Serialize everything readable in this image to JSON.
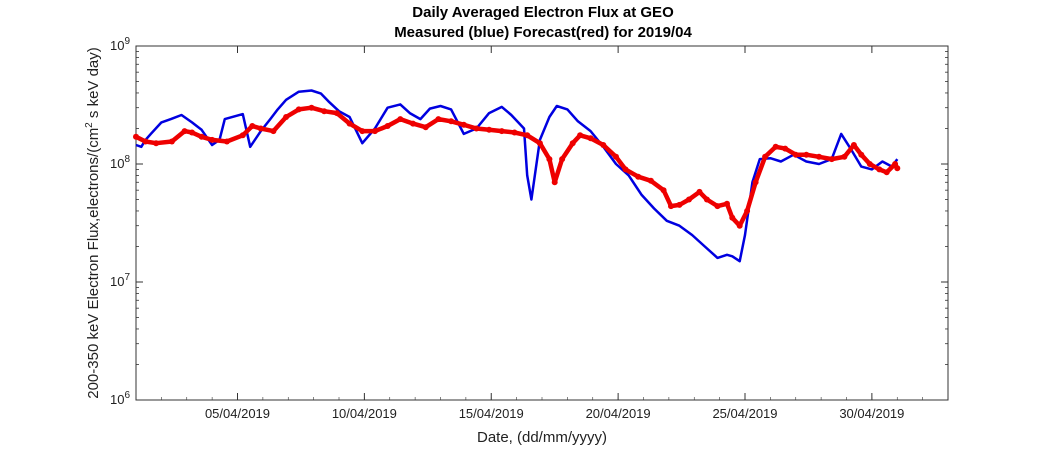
{
  "chart_data": {
    "type": "line",
    "title": "Daily Averaged Electron Flux at GEO",
    "subtitle": "Measured (blue) Forecast(red) for 2019/04",
    "xlabel": "Date, (dd/mm/yyyy)",
    "ylabel": "200-350 keV Electron Flux,electrons/(cm² s keV day)",
    "ylabel_prefix": "200-350 keV Electron Flux,electrons/(cm",
    "ylabel_exp": "2",
    "ylabel_suffix": " s keV day)",
    "y_scale": "log",
    "ylim": [
      1000000,
      1000000000
    ],
    "y_ticks": [
      {
        "value": 1000000,
        "base": "10",
        "exp": "6"
      },
      {
        "value": 10000000,
        "base": "10",
        "exp": "7"
      },
      {
        "value": 100000000,
        "base": "10",
        "exp": "8"
      },
      {
        "value": 1000000000,
        "base": "10",
        "exp": "9"
      }
    ],
    "xlim": [
      "2019-04-01",
      "2019-05-03"
    ],
    "x_ticks": [
      {
        "date": "2019-04-05",
        "label": "05/04/2019"
      },
      {
        "date": "2019-04-10",
        "label": "10/04/2019"
      },
      {
        "date": "2019-04-15",
        "label": "15/04/2019"
      },
      {
        "date": "2019-04-20",
        "label": "20/04/2019"
      },
      {
        "date": "2019-04-25",
        "label": "25/04/2019"
      },
      {
        "date": "2019-04-30",
        "label": "30/04/2019"
      }
    ],
    "grid": false,
    "series": [
      {
        "name": "Measured",
        "color": "#0000e0",
        "style": "line",
        "x": [
          "2019-04-01T00:00",
          "2019-04-01T05:00",
          "2019-04-01T09:00",
          "2019-04-01T14:00",
          "2019-04-02T00:00",
          "2019-04-02T09:00",
          "2019-04-02T19:00",
          "2019-04-03T05:00",
          "2019-04-03T14:00",
          "2019-04-04T00:00",
          "2019-04-04T07:00",
          "2019-04-04T12:00",
          "2019-04-05T05:00",
          "2019-04-05T12:00",
          "2019-04-05T22:00",
          "2019-04-06T07:00",
          "2019-04-06T14:00",
          "2019-04-06T22:00",
          "2019-04-07T10:00",
          "2019-04-07T22:00",
          "2019-04-08T07:00",
          "2019-04-08T14:00",
          "2019-04-09T00:00",
          "2019-04-09T10:00",
          "2019-04-09T22:00",
          "2019-04-10T10:00",
          "2019-04-10T22:00",
          "2019-04-11T10:00",
          "2019-04-11T19:00",
          "2019-04-12T05:00",
          "2019-04-12T14:00",
          "2019-04-13T00:00",
          "2019-04-13T10:00",
          "2019-04-13T22:00",
          "2019-04-14T10:00",
          "2019-04-14T22:00",
          "2019-04-15T10:00",
          "2019-04-15T19:00",
          "2019-04-16T07:00",
          "2019-04-16T10:00",
          "2019-04-16T14:00",
          "2019-04-16T22:00",
          "2019-04-17T07:00",
          "2019-04-17T14:00",
          "2019-04-18T00:00",
          "2019-04-18T10:00",
          "2019-04-18T22:00",
          "2019-04-19T10:00",
          "2019-04-19T22:00",
          "2019-04-20T10:00",
          "2019-04-20T22:00",
          "2019-04-21T10:00",
          "2019-04-21T22:00",
          "2019-04-22T10:00",
          "2019-04-22T22:00",
          "2019-04-23T10:00",
          "2019-04-23T22:00",
          "2019-04-24T07:00",
          "2019-04-24T12:00",
          "2019-04-24T19:00",
          "2019-04-25T00:00",
          "2019-04-25T07:00",
          "2019-04-25T14:00",
          "2019-04-26T00:00",
          "2019-04-26T10:00",
          "2019-04-26T22:00",
          "2019-04-27T10:00",
          "2019-04-27T22:00",
          "2019-04-28T10:00",
          "2019-04-28T19:00",
          "2019-04-29T05:00",
          "2019-04-29T14:00",
          "2019-04-30T00:00",
          "2019-04-30T10:00",
          "2019-04-30T19:00",
          "2019-05-01T00:00"
        ],
        "y": [
          145000000,
          140000000,
          160000000,
          180000000,
          225000000,
          240000000,
          260000000,
          225000000,
          195000000,
          145000000,
          160000000,
          240000000,
          265000000,
          140000000,
          190000000,
          240000000,
          290000000,
          350000000,
          410000000,
          420000000,
          395000000,
          340000000,
          280000000,
          250000000,
          150000000,
          200000000,
          300000000,
          320000000,
          270000000,
          240000000,
          295000000,
          310000000,
          290000000,
          180000000,
          200000000,
          270000000,
          305000000,
          260000000,
          200000000,
          80000000,
          50000000,
          160000000,
          250000000,
          310000000,
          290000000,
          230000000,
          190000000,
          140000000,
          100000000,
          80000000,
          55000000,
          42000000,
          33000000,
          30000000,
          25000000,
          20000000,
          16000000,
          17000000,
          16500000,
          15000000,
          25000000,
          70000000,
          110000000,
          112000000,
          105000000,
          120000000,
          105000000,
          100000000,
          110000000,
          180000000,
          130000000,
          95000000,
          90000000,
          105000000,
          95000000,
          110000000
        ]
      },
      {
        "name": "Forecast",
        "color": "#ee0000",
        "style": "dots",
        "x": [
          "2019-04-01T00:00",
          "2019-04-01T09:00",
          "2019-04-01T19:00",
          "2019-04-02T10:00",
          "2019-04-02T22:00",
          "2019-04-03T05:00",
          "2019-04-03T14:00",
          "2019-04-04T00:00",
          "2019-04-04T14:00",
          "2019-04-05T05:00",
          "2019-04-05T14:00",
          "2019-04-05T22:00",
          "2019-04-06T10:00",
          "2019-04-06T22:00",
          "2019-04-07T10:00",
          "2019-04-07T22:00",
          "2019-04-08T10:00",
          "2019-04-08T22:00",
          "2019-04-09T10:00",
          "2019-04-09T22:00",
          "2019-04-10T10:00",
          "2019-04-10T22:00",
          "2019-04-11T10:00",
          "2019-04-11T22:00",
          "2019-04-12T10:00",
          "2019-04-12T22:00",
          "2019-04-13T10:00",
          "2019-04-13T22:00",
          "2019-04-14T10:00",
          "2019-04-14T22:00",
          "2019-04-15T10:00",
          "2019-04-15T22:00",
          "2019-04-16T10:00",
          "2019-04-16T22:00",
          "2019-04-17T07:00",
          "2019-04-17T12:00",
          "2019-04-17T19:00",
          "2019-04-18T05:00",
          "2019-04-18T12:00",
          "2019-04-18T22:00",
          "2019-04-19T10:00",
          "2019-04-19T22:00",
          "2019-04-20T07:00",
          "2019-04-20T19:00",
          "2019-04-21T07:00",
          "2019-04-21T19:00",
          "2019-04-22T02:00",
          "2019-04-22T10:00",
          "2019-04-22T19:00",
          "2019-04-23T05:00",
          "2019-04-23T12:00",
          "2019-04-23T22:00",
          "2019-04-24T07:00",
          "2019-04-24T12:00",
          "2019-04-24T19:00",
          "2019-04-25T02:00",
          "2019-04-25T10:00",
          "2019-04-25T19:00",
          "2019-04-26T05:00",
          "2019-04-26T14:00",
          "2019-04-27T00:00",
          "2019-04-27T10:00",
          "2019-04-27T22:00",
          "2019-04-28T10:00",
          "2019-04-28T22:00",
          "2019-04-29T07:00",
          "2019-04-29T14:00",
          "2019-04-29T22:00",
          "2019-04-30T07:00",
          "2019-04-30T14:00",
          "2019-04-30T22:00",
          "2019-05-01T00:00"
        ],
        "y": [
          170000000,
          155000000,
          150000000,
          155000000,
          190000000,
          185000000,
          170000000,
          160000000,
          155000000,
          175000000,
          210000000,
          200000000,
          190000000,
          250000000,
          290000000,
          300000000,
          280000000,
          270000000,
          220000000,
          190000000,
          190000000,
          210000000,
          240000000,
          220000000,
          205000000,
          240000000,
          230000000,
          215000000,
          200000000,
          195000000,
          190000000,
          185000000,
          175000000,
          150000000,
          110000000,
          70000000,
          110000000,
          150000000,
          175000000,
          165000000,
          145000000,
          115000000,
          90000000,
          78000000,
          72000000,
          60000000,
          44000000,
          45000000,
          50000000,
          58000000,
          50000000,
          44000000,
          46000000,
          35000000,
          30000000,
          40000000,
          70000000,
          115000000,
          140000000,
          135000000,
          120000000,
          120000000,
          115000000,
          110000000,
          115000000,
          145000000,
          120000000,
          100000000,
          90000000,
          85000000,
          100000000,
          92000000
        ]
      }
    ]
  }
}
